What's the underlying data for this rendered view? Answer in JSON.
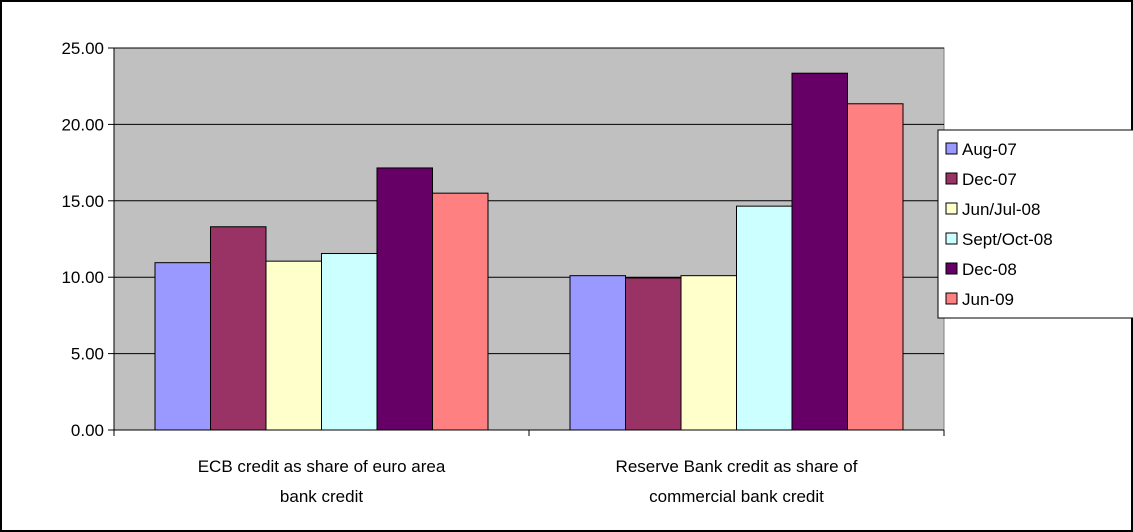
{
  "chart_data": {
    "type": "bar",
    "categories": [
      [
        "ECB credit as share of euro area",
        "bank credit"
      ],
      [
        "Reserve Bank credit as share of",
        "commercial bank credit"
      ]
    ],
    "series": [
      {
        "name": "Aug-07",
        "color": "#9999FF",
        "values": [
          10.95,
          10.1
        ]
      },
      {
        "name": "Dec-07",
        "color": "#993366",
        "values": [
          13.3,
          9.95
        ]
      },
      {
        "name": "Jun/Jul-08",
        "color": "#FFFFCC",
        "values": [
          11.05,
          10.1
        ]
      },
      {
        "name": "Sept/Oct-08",
        "color": "#CCFFFF",
        "values": [
          11.55,
          14.65
        ]
      },
      {
        "name": "Dec-08",
        "color": "#660066",
        "values": [
          17.15,
          23.35
        ]
      },
      {
        "name": "Jun-09",
        "color": "#FF8080",
        "values": [
          15.5,
          21.35
        ]
      }
    ],
    "yticks": [
      "0.00",
      "5.00",
      "10.00",
      "15.00",
      "20.00",
      "25.00"
    ],
    "ylim": [
      0,
      25
    ],
    "plot_background": "#C0C0C0",
    "grid": true,
    "legend_position": "right"
  }
}
